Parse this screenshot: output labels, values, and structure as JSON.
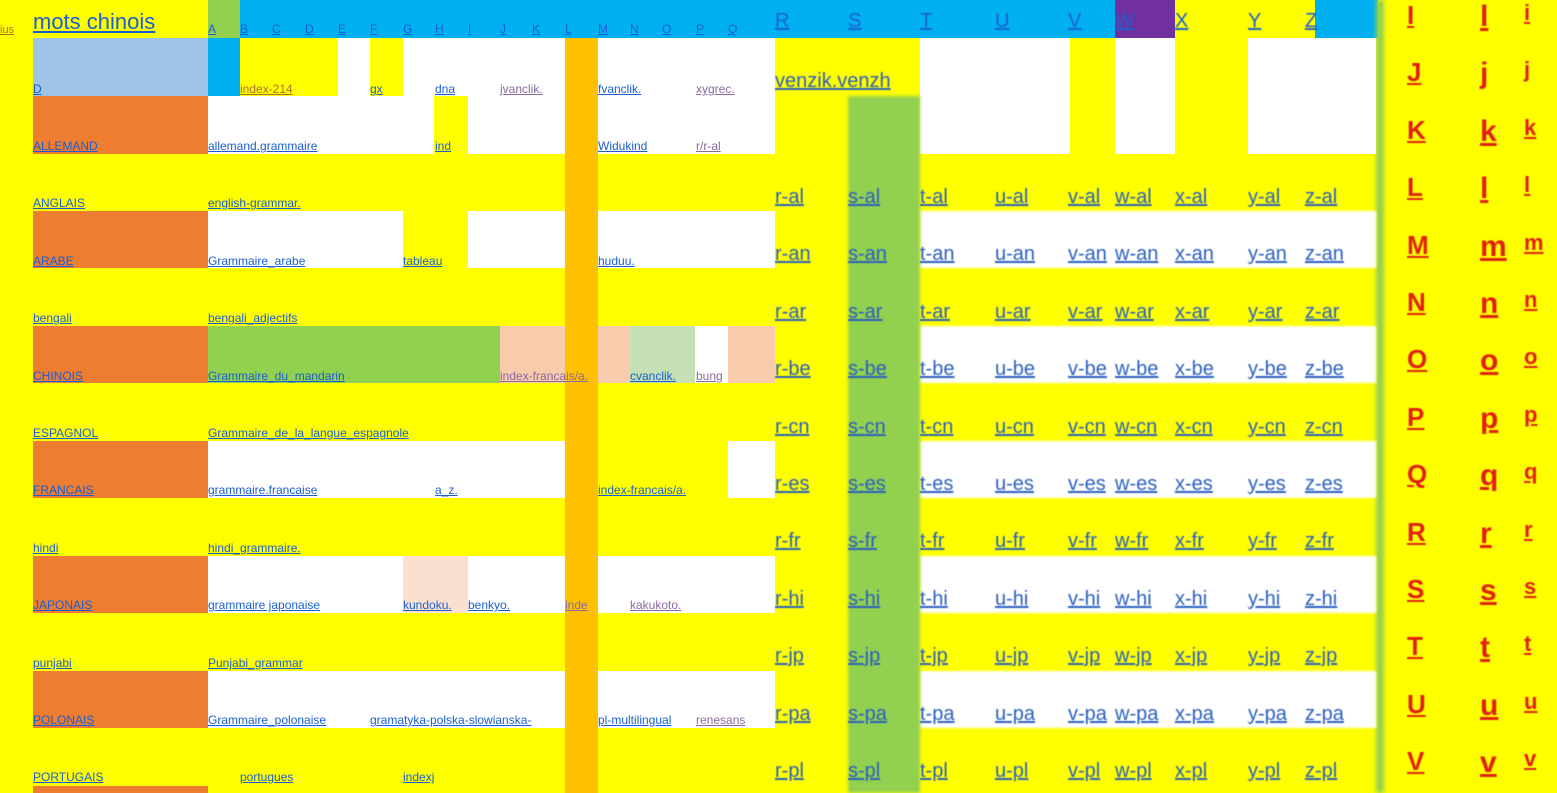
{
  "title": "mots chinois",
  "left_stub": "ius",
  "header_letters": [
    "A",
    "B",
    "C",
    "D",
    "E",
    "F",
    "G",
    "H",
    "I",
    "J",
    "K",
    "L",
    "M",
    "N",
    "O",
    "P",
    "Q"
  ],
  "header_big": [
    "R",
    "S",
    "T",
    "U",
    "V",
    "W",
    "X",
    "Y",
    "Z"
  ],
  "row1": {
    "d": "D",
    "index": "index-214",
    "gx": "gx",
    "dna": "dna",
    "jvanclik": "jvanclik.",
    "fvanclik": "fvanclik.",
    "xygrec": "xygrec.",
    "venzik": "venzik.venzh"
  },
  "rows": [
    {
      "lang": "ALLEMAND",
      "g": "allemand.grammaire",
      "e1": "ind",
      "e2": "Widukind",
      "e3": "r/r-al"
    },
    {
      "lang": "ANGLAIS",
      "g": "english-grammar.",
      "e1": "",
      "e2": "",
      "e3": ""
    },
    {
      "lang": "ARABE",
      "g": "Grammaire_arabe",
      "e1": "tableau",
      "e2": "huduu.",
      "e3": ""
    },
    {
      "lang": "bengali",
      "g": "bengali_adjectifs",
      "e1": "",
      "e2": "",
      "e3": ""
    },
    {
      "lang": "CHINOIS",
      "g": "Grammaire_du_mandarin",
      "e1": "index-francais/a.",
      "e2": "cvanclik.",
      "e3": "bung"
    },
    {
      "lang": "ESPAGNOL",
      "g": "Grammaire_de_la_langue_espagnole",
      "e1": "",
      "e2": "",
      "e3": ""
    },
    {
      "lang": "FRANCAIS",
      "g": "grammaire.francaise",
      "e1": "a_z.",
      "e2": "index-francais/a.",
      "e3": ""
    },
    {
      "lang": "hindi",
      "g": "hindi_grammaire.",
      "e1": "",
      "e2": "",
      "e3": ""
    },
    {
      "lang": "JAPONAIS",
      "g": "grammaire japonaise",
      "e1": "kundoku.",
      "e2": "benkyo.",
      "e3": "inde",
      "e4": "kakukoto."
    },
    {
      "lang": "punjabi",
      "g": "Punjabi_grammar",
      "e1": "",
      "e2": "",
      "e3": ""
    },
    {
      "lang": "POLONAIS",
      "g": "Grammaire_polonaise",
      "e1": "gramatyka-polska-slowianska-",
      "e2": "pl-multilingual",
      "e3": "renesans"
    },
    {
      "lang": "PORTUGAIS",
      "g": "portugues",
      "e1": "indexj",
      "e2": "",
      "e3": ""
    }
  ],
  "suffixes": [
    "al",
    "an",
    "ar",
    "be",
    "cn",
    "es",
    "fr",
    "hi",
    "jp",
    "pa",
    "pl"
  ],
  "prefixes": [
    "r",
    "s",
    "t",
    "u",
    "v",
    "w",
    "x",
    "y",
    "z"
  ],
  "big_cols": [
    [
      "I",
      "J",
      "K",
      "L",
      "M",
      "N",
      "O",
      "P",
      "Q",
      "R",
      "S",
      "T",
      "U",
      "V"
    ],
    [
      "l",
      "j",
      "k",
      "l",
      "m",
      "n",
      "o",
      "p",
      "q",
      "r",
      "s",
      "t",
      "u",
      "v"
    ],
    [
      "i",
      "j",
      "k",
      "l",
      "m",
      "n",
      "o",
      "p",
      "q",
      "r",
      "s",
      "t",
      "u",
      "v"
    ]
  ],
  "colors": {
    "yellow": "#ffff00",
    "cyan": "#00b0f0",
    "orange": "#ed7d31",
    "amber": "#ffc000",
    "green": "#92d050",
    "blue_grey": "#9dc3e6",
    "purple": "#7030a0",
    "peach": "#f8cbad",
    "mint": "#c5e0b4",
    "red": "#e02010"
  }
}
